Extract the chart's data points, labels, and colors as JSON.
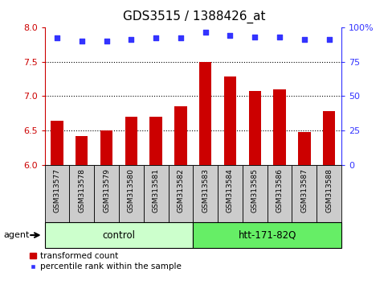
{
  "title": "GDS3515 / 1388426_at",
  "samples": [
    "GSM313577",
    "GSM313578",
    "GSM313579",
    "GSM313580",
    "GSM313581",
    "GSM313582",
    "GSM313583",
    "GSM313584",
    "GSM313585",
    "GSM313586",
    "GSM313587",
    "GSM313588"
  ],
  "bar_values": [
    6.65,
    6.42,
    6.5,
    6.7,
    6.7,
    6.85,
    7.5,
    7.28,
    7.07,
    7.1,
    6.48,
    6.78
  ],
  "percentile_values": [
    92,
    90,
    90,
    91,
    92,
    92,
    96,
    94,
    93,
    93,
    91,
    91
  ],
  "bar_color": "#cc0000",
  "dot_color": "#3333ff",
  "ylim_left": [
    6.0,
    8.0
  ],
  "ylim_right": [
    0,
    100
  ],
  "yticks_left": [
    6.0,
    6.5,
    7.0,
    7.5,
    8.0
  ],
  "yticks_right": [
    0,
    25,
    50,
    75,
    100
  ],
  "ytick_labels_right": [
    "0",
    "25",
    "50",
    "75",
    "100%"
  ],
  "grid_values": [
    6.5,
    7.0,
    7.5
  ],
  "group_boundary": 5.5,
  "groups": [
    {
      "label": "control",
      "start": 0,
      "end": 5,
      "color": "#ccffcc"
    },
    {
      "label": "htt-171-82Q",
      "start": 6,
      "end": 11,
      "color": "#66ee66"
    }
  ],
  "agent_label": "agent",
  "legend_bar_label": "transformed count",
  "legend_dot_label": "percentile rank within the sample",
  "title_fontsize": 11,
  "axis_label_color_left": "#cc0000",
  "axis_label_color_right": "#3333ff",
  "sample_box_color": "#cccccc",
  "bar_width": 0.5
}
